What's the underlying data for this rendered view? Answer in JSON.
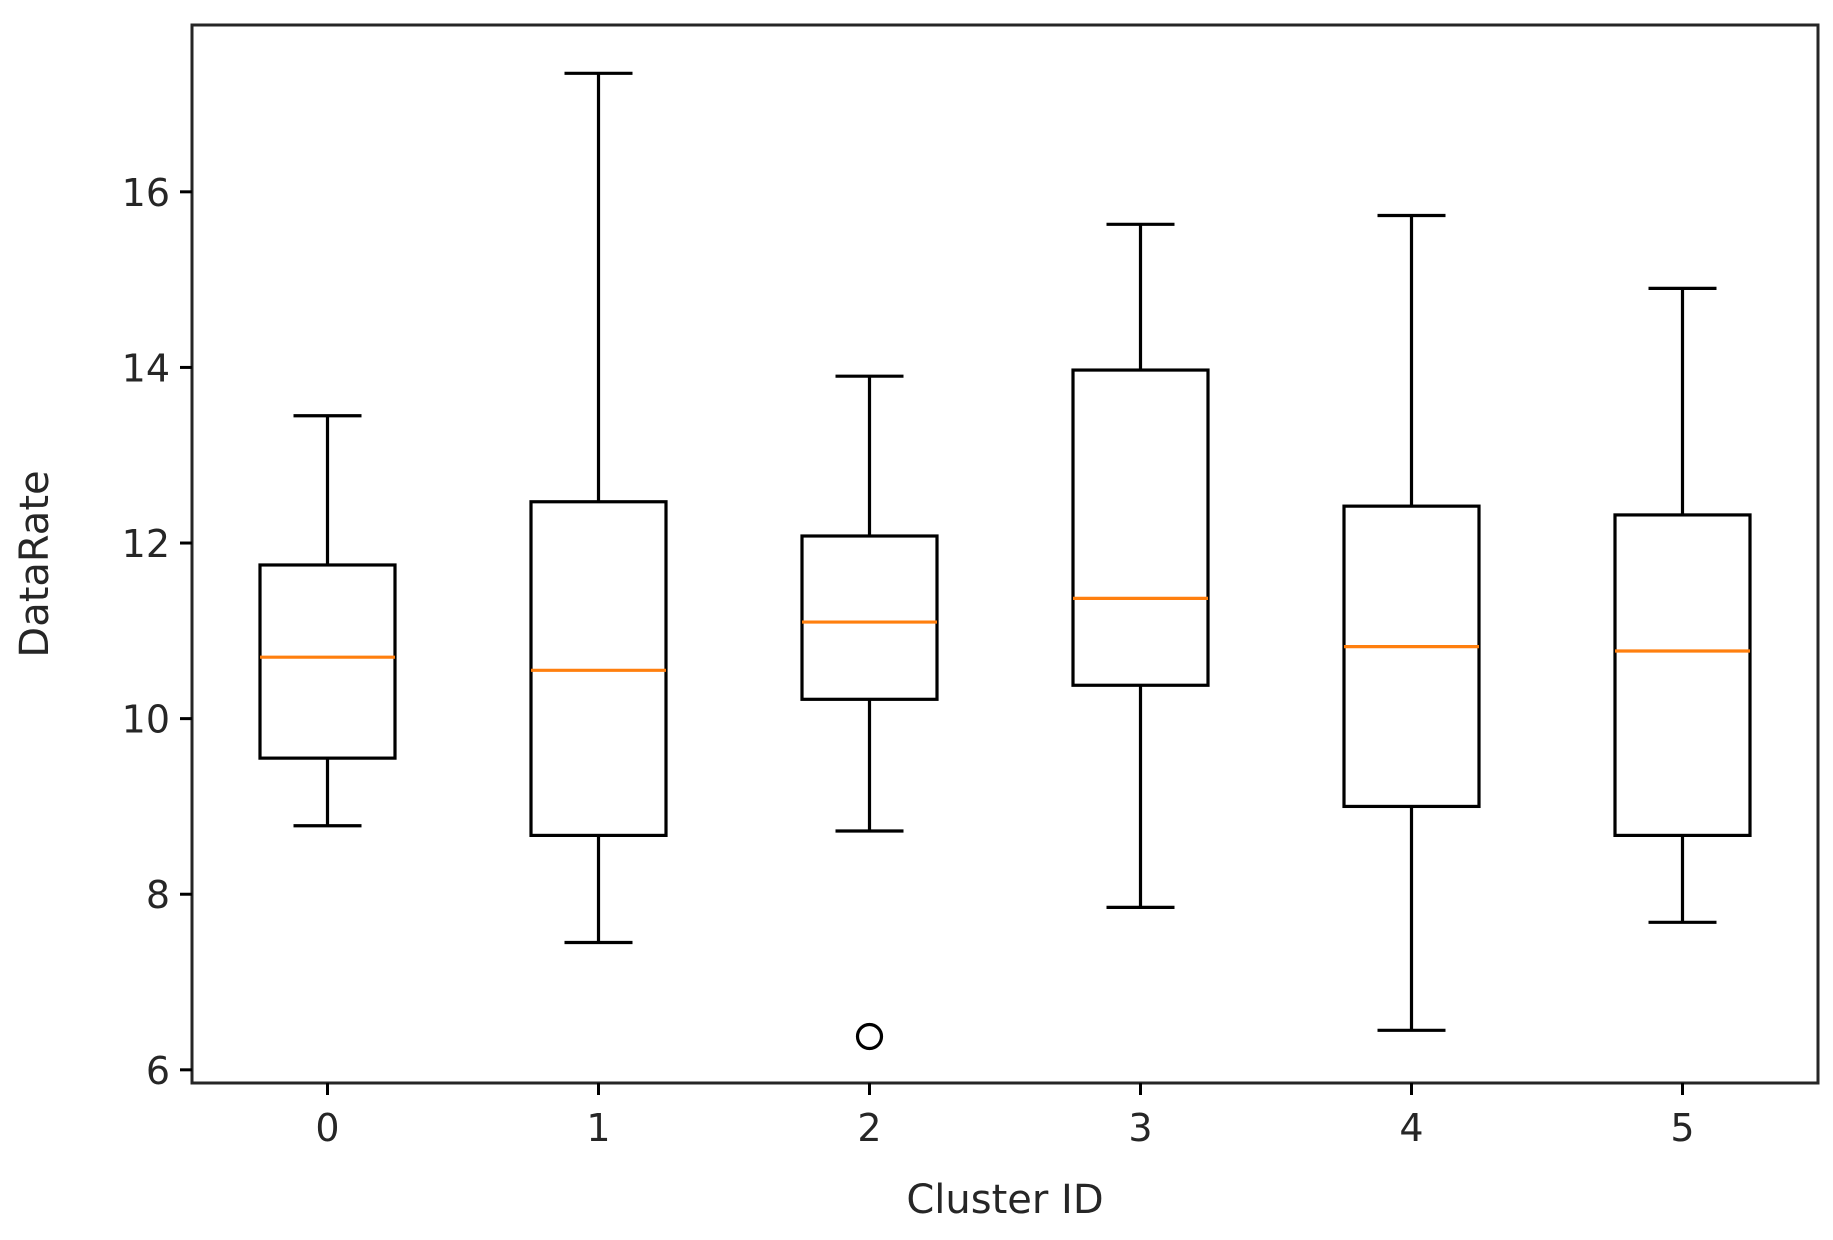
{
  "chart_data": {
    "type": "box",
    "title": "",
    "xlabel": "Cluster ID",
    "ylabel": "DataRate",
    "ylim": [
      5.85,
      17.9
    ],
    "yticks": [
      6,
      8,
      10,
      12,
      14,
      16
    ],
    "grid": false,
    "colors": {
      "box": "#000000",
      "median": "#ff7f0e",
      "axis": "#000000"
    },
    "categories": [
      "0",
      "1",
      "2",
      "3",
      "4",
      "5"
    ],
    "boxes": [
      {
        "category": "0",
        "whisker_low": 8.78,
        "q1": 9.55,
        "median": 10.7,
        "q3": 11.75,
        "whisker_high": 13.45,
        "outliers": []
      },
      {
        "category": "1",
        "whisker_low": 7.45,
        "q1": 8.67,
        "median": 10.55,
        "q3": 12.47,
        "whisker_high": 17.35,
        "outliers": []
      },
      {
        "category": "2",
        "whisker_low": 8.72,
        "q1": 10.22,
        "median": 11.1,
        "q3": 12.08,
        "whisker_high": 13.9,
        "outliers": [
          6.38
        ]
      },
      {
        "category": "3",
        "whisker_low": 7.85,
        "q1": 10.38,
        "median": 11.37,
        "q3": 13.97,
        "whisker_high": 15.63,
        "outliers": []
      },
      {
        "category": "4",
        "whisker_low": 6.45,
        "q1": 9.0,
        "median": 10.82,
        "q3": 12.42,
        "whisker_high": 15.73,
        "outliers": []
      },
      {
        "category": "5",
        "whisker_low": 7.68,
        "q1": 8.67,
        "median": 10.77,
        "q3": 12.32,
        "whisker_high": 14.9,
        "outliers": []
      }
    ]
  }
}
